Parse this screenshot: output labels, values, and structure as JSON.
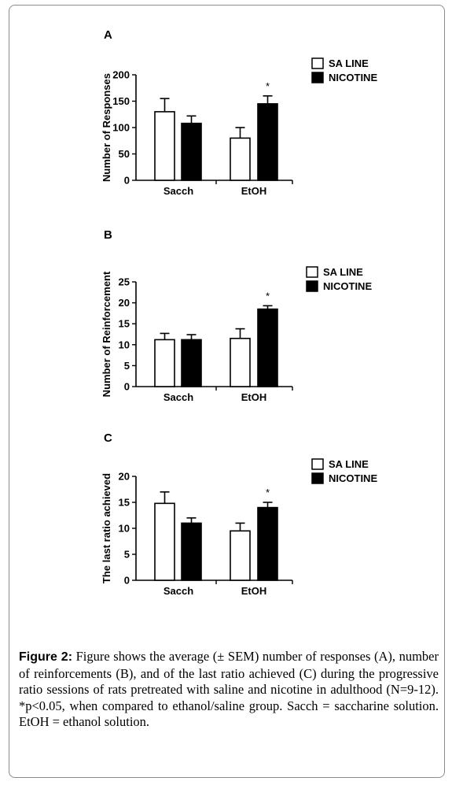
{
  "chart_data": [
    {
      "type": "bar",
      "panel": "A",
      "ylabel": "Number of Responses",
      "ylim": [
        0,
        200
      ],
      "yticks": [
        0,
        50,
        100,
        150,
        200
      ],
      "categories": [
        "Sacch",
        "EtOH"
      ],
      "series": [
        {
          "name": "SA LINE",
          "values": [
            130,
            80
          ],
          "errors": [
            25,
            20
          ]
        },
        {
          "name": "NICOTINE",
          "values": [
            108,
            145
          ],
          "errors": [
            14,
            15
          ]
        }
      ],
      "annotations": [
        {
          "category": "EtOH",
          "series": "NICOTINE",
          "text": "*"
        }
      ],
      "legend": "top-right"
    },
    {
      "type": "bar",
      "panel": "B",
      "ylabel": "Number of Reinforcement",
      "ylim": [
        0,
        25
      ],
      "yticks": [
        0,
        5,
        10,
        15,
        20,
        25
      ],
      "categories": [
        "Sacch",
        "EtOH"
      ],
      "series": [
        {
          "name": "SA LINE",
          "values": [
            11.2,
            11.5
          ],
          "errors": [
            1.5,
            2.3
          ]
        },
        {
          "name": "NICOTINE",
          "values": [
            11.2,
            18.5
          ],
          "errors": [
            1.2,
            0.8
          ]
        }
      ],
      "annotations": [
        {
          "category": "EtOH",
          "series": "NICOTINE",
          "text": "*"
        }
      ],
      "legend": "top-right"
    },
    {
      "type": "bar",
      "panel": "C",
      "ylabel": "The last ratio achieved",
      "ylim": [
        0,
        20
      ],
      "yticks": [
        0,
        5,
        10,
        15,
        20
      ],
      "categories": [
        "Sacch",
        "EtOH"
      ],
      "series": [
        {
          "name": "SA LINE",
          "values": [
            14.8,
            9.5
          ],
          "errors": [
            2.2,
            1.5
          ]
        },
        {
          "name": "NICOTINE",
          "values": [
            11.0,
            14.0
          ],
          "errors": [
            1.0,
            1.0
          ]
        }
      ],
      "annotations": [
        {
          "category": "EtOH",
          "series": "NICOTINE",
          "text": "*"
        }
      ],
      "legend": "top-right"
    }
  ],
  "colors": {
    "saline": "#ffffff",
    "nicotine": "#000000",
    "axis": "#000000"
  },
  "caption": {
    "label": "Figure 2:",
    "text": "Figure shows the average (± SEM) number of responses (A), number of reinforcements (B), and of the last ratio achieved (C) during the progressive ratio sessions of rats pretreated with saline and nicotine in adulthood (N=9-12). *p<0.05, when compared to ethanol/saline group. Sacch = saccharine solution. EtOH = ethanol solution."
  }
}
